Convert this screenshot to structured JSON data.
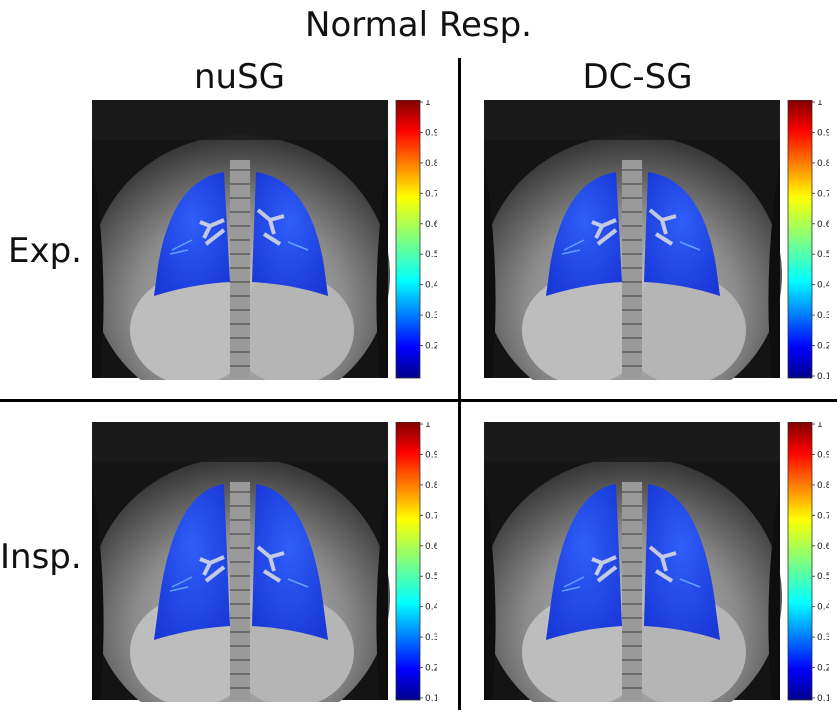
{
  "figure": {
    "title": "Normal Resp.",
    "columns": [
      "nuSG",
      "DC-SG"
    ],
    "rows": [
      "Exp.",
      "Insp."
    ]
  },
  "colorbar": {
    "ticks": [
      "1",
      "0.9",
      "0.8",
      "0.7",
      "0.6",
      "0.5",
      "0.4",
      "0.3",
      "0.2",
      "0.1"
    ],
    "colormap": "jet",
    "top_color": "#8b0000",
    "bottom_color": "#00008b"
  },
  "panels": [
    {
      "row": "Exp.",
      "column": "nuSG",
      "colorbar_ticks": [
        "1",
        "0.9",
        "0.8",
        "0.7",
        "0.6",
        "0.5",
        "0.4",
        "0.3",
        "0.2"
      ]
    },
    {
      "row": "Exp.",
      "column": "DC-SG",
      "colorbar_ticks": [
        "1",
        "0.9",
        "0.8",
        "0.7",
        "0.6",
        "0.5",
        "0.4",
        "0.3",
        "0.2",
        "0.1"
      ]
    },
    {
      "row": "Insp.",
      "column": "nuSG",
      "colorbar_ticks": [
        "1",
        "0.9",
        "0.8",
        "0.7",
        "0.6",
        "0.5",
        "0.4",
        "0.3",
        "0.2",
        "0.1"
      ]
    },
    {
      "row": "Insp.",
      "column": "DC-SG",
      "colorbar_ticks": [
        "1",
        "0.9",
        "0.8",
        "0.7",
        "0.6",
        "0.5",
        "0.4",
        "0.3",
        "0.2",
        "0.1"
      ]
    }
  ],
  "colors": {
    "lung_overlay": "#1a3cf0",
    "mri_dark": "#1a1a1a",
    "mri_light": "#d0d0d0"
  }
}
